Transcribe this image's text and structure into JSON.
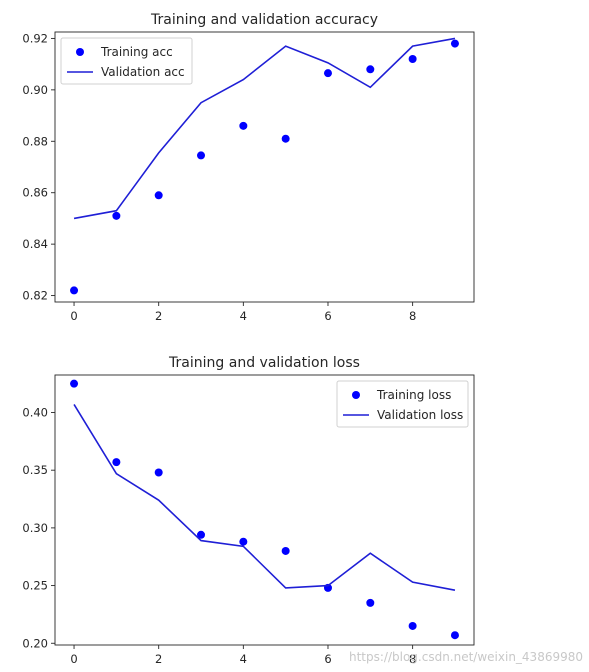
{
  "colors": {
    "series": "#0000ff",
    "line": "#1f1fd6",
    "axis": "#262626",
    "legend_border": "#d0d0d0"
  },
  "watermark": "https://blog.csdn.net/weixin_43869980",
  "chart_data": [
    {
      "type": "scatter",
      "title": "Training and validation accuracy",
      "xlabel": "",
      "ylabel": "",
      "xlim": [
        -0.45,
        9.45
      ],
      "ylim": [
        0.8175,
        0.9225
      ],
      "xticks": [
        0,
        2,
        4,
        6,
        8
      ],
      "xtick_labels": [
        "0",
        "2",
        "4",
        "6",
        "8"
      ],
      "yticks": [
        0.82,
        0.84,
        0.86,
        0.88,
        0.9,
        0.92
      ],
      "ytick_labels": [
        "0.82",
        "0.84",
        "0.86",
        "0.88",
        "0.90",
        "0.92"
      ],
      "legend_position": "upper left",
      "grid": false,
      "x": [
        0,
        1,
        2,
        3,
        4,
        5,
        6,
        7,
        8,
        9
      ],
      "series": [
        {
          "name": "Training acc",
          "marker": "dot",
          "values": [
            0.822,
            0.851,
            0.859,
            0.8745,
            0.886,
            0.881,
            0.9065,
            0.908,
            0.912,
            0.918
          ]
        },
        {
          "name": "Validation acc",
          "marker": "line",
          "values": [
            0.85,
            0.853,
            0.8755,
            0.895,
            0.904,
            0.917,
            0.9105,
            0.901,
            0.917,
            0.92
          ]
        }
      ]
    },
    {
      "type": "scatter",
      "title": "Training and validation loss",
      "xlabel": "",
      "ylabel": "",
      "xlim": [
        -0.45,
        9.45
      ],
      "ylim": [
        0.1985,
        0.4325
      ],
      "xticks": [
        0,
        2,
        4,
        6,
        8
      ],
      "xtick_labels": [
        "0",
        "2",
        "4",
        "6",
        "8"
      ],
      "yticks": [
        0.2,
        0.25,
        0.3,
        0.35,
        0.4
      ],
      "ytick_labels": [
        "0.20",
        "0.25",
        "0.30",
        "0.35",
        "0.40"
      ],
      "legend_position": "upper right",
      "grid": false,
      "x": [
        0,
        1,
        2,
        3,
        4,
        5,
        6,
        7,
        8,
        9
      ],
      "series": [
        {
          "name": "Training loss",
          "marker": "dot",
          "values": [
            0.425,
            0.357,
            0.348,
            0.294,
            0.288,
            0.28,
            0.248,
            0.235,
            0.215,
            0.207
          ]
        },
        {
          "name": "Validation loss",
          "marker": "line",
          "values": [
            0.407,
            0.347,
            0.324,
            0.289,
            0.284,
            0.248,
            0.25,
            0.278,
            0.253,
            0.246
          ]
        }
      ]
    }
  ]
}
